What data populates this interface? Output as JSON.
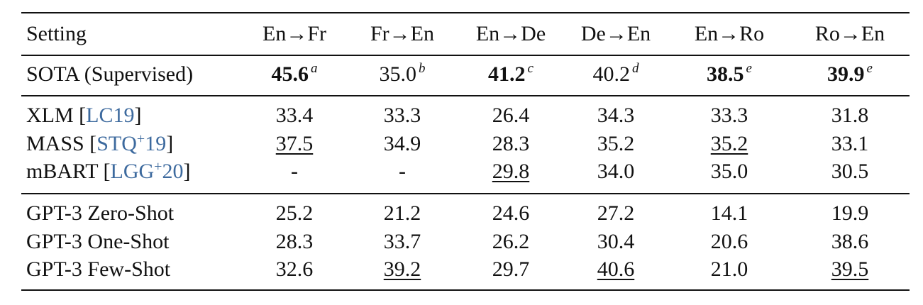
{
  "table": {
    "header": [
      "Setting",
      "En→Fr",
      "Fr→En",
      "En→De",
      "De→En",
      "En→Ro",
      "Ro→En"
    ],
    "sections": [
      [
        {
          "label": "SOTA (Supervised)",
          "cells": [
            {
              "text": "45.6",
              "sup": "a",
              "bold": true
            },
            {
              "text": "35.0",
              "sup": "b"
            },
            {
              "text": "41.2",
              "sup": "c",
              "bold": true
            },
            {
              "text": "40.2",
              "sup": "d"
            },
            {
              "text": "38.5",
              "sup": "e",
              "bold": true
            },
            {
              "text": "39.9",
              "sup": "e",
              "bold": true
            }
          ]
        }
      ],
      [
        {
          "label": "XLM",
          "cite": {
            "open": "[",
            "key": "LC19",
            "close": "]"
          },
          "cells": [
            {
              "text": "33.4"
            },
            {
              "text": "33.3"
            },
            {
              "text": "26.4"
            },
            {
              "text": "34.3"
            },
            {
              "text": "33.3"
            },
            {
              "text": "31.8"
            }
          ]
        },
        {
          "label": "MASS",
          "cite": {
            "open": "[",
            "key": "STQ",
            "sup": "+",
            "year": "19",
            "close": "]"
          },
          "cells": [
            {
              "text": "37.5",
              "underline": true
            },
            {
              "text": "34.9"
            },
            {
              "text": "28.3"
            },
            {
              "text": "35.2"
            },
            {
              "text": "35.2",
              "underline": true
            },
            {
              "text": "33.1"
            }
          ]
        },
        {
          "label": "mBART",
          "cite": {
            "open": "[",
            "key": "LGG",
            "sup": "+",
            "year": "20",
            "close": "]"
          },
          "cells": [
            {
              "text": "-"
            },
            {
              "text": "-"
            },
            {
              "text": "29.8",
              "underline": true
            },
            {
              "text": "34.0"
            },
            {
              "text": "35.0"
            },
            {
              "text": "30.5"
            }
          ]
        }
      ],
      [
        {
          "label": "GPT-3 Zero-Shot",
          "cells": [
            {
              "text": "25.2"
            },
            {
              "text": "21.2"
            },
            {
              "text": "24.6"
            },
            {
              "text": "27.2"
            },
            {
              "text": "14.1"
            },
            {
              "text": "19.9"
            }
          ]
        },
        {
          "label": "GPT-3 One-Shot",
          "cells": [
            {
              "text": "28.3"
            },
            {
              "text": "33.7"
            },
            {
              "text": "26.2"
            },
            {
              "text": "30.4"
            },
            {
              "text": "20.6"
            },
            {
              "text": "38.6"
            }
          ]
        },
        {
          "label": "GPT-3 Few-Shot",
          "cells": [
            {
              "text": "32.6"
            },
            {
              "text": "39.2",
              "underline": true
            },
            {
              "text": "29.7"
            },
            {
              "text": "40.6",
              "underline": true
            },
            {
              "text": "21.0"
            },
            {
              "text": "39.5",
              "underline": true
            }
          ]
        }
      ]
    ]
  }
}
